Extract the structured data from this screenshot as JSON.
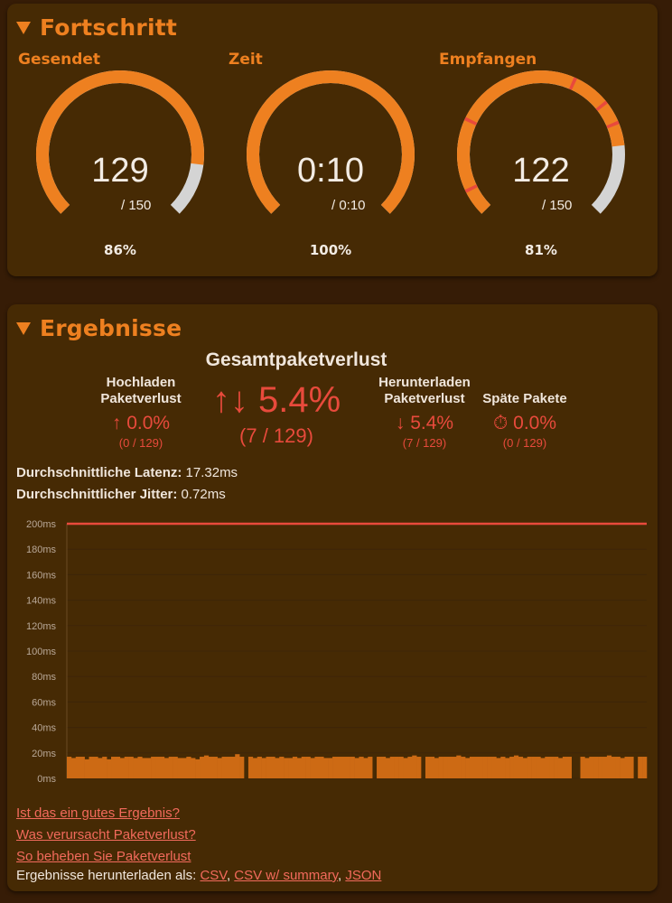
{
  "progress": {
    "title": "Fortschritt",
    "gauges": [
      {
        "label": "Gesendet",
        "value": "129",
        "total": "/ 150",
        "percent": "86%",
        "fraction": 0.86,
        "marks": []
      },
      {
        "label": "Zeit",
        "value": "0:10",
        "total": "/ 0:10",
        "percent": "100%",
        "fraction": 1.0,
        "marks": []
      },
      {
        "label": "Empfangen",
        "value": "122",
        "total": "/ 150",
        "percent": "81%",
        "fraction": 0.81,
        "marks": [
          0.07,
          0.26,
          0.59,
          0.69,
          0.75
        ]
      }
    ]
  },
  "results": {
    "title": "Ergebnisse",
    "total_loss_heading": "Gesamtpaketverlust",
    "total_loss_value": "↑↓ 5.4%",
    "total_loss_count": "(7 / 129)",
    "upload": {
      "title1": "Hochladen",
      "title2": "Paketverlust",
      "value": "↑ 0.0%",
      "count": "(0 / 129)"
    },
    "download": {
      "title1": "Herunterladen",
      "title2": "Paketverlust",
      "value": "↓ 5.4%",
      "count": "(7 / 129)"
    },
    "late": {
      "title": "Späte Pakete",
      "value": "⏱ 0.0%",
      "count": "(0 / 129)"
    },
    "avg_latency_label": "Durchschnittliche Latenz:",
    "avg_latency_value": " 17.32ms",
    "avg_jitter_label": "Durchschnittlicher Jitter:",
    "avg_jitter_value": " 0.72ms",
    "links": [
      "Ist das ein gutes Ergebnis?",
      "Was verursacht Paketverlust?",
      "So beheben Sie Paketverlust"
    ],
    "download_label": "Ergebnisse herunterladen als: ",
    "download_csv": "CSV",
    "download_csv_summary": "CSV w/ summary",
    "download_json": "JSON",
    "sep": ", "
  },
  "colors": {
    "accent": "#ee8020",
    "gauge_track": "#d4d4d4",
    "loss": "#e84a3c",
    "bars": "#cd6a14",
    "panel": "#462a04",
    "background": "#361c06"
  },
  "chart_data": {
    "type": "bar",
    "ylabel": "",
    "ylim": [
      0,
      200
    ],
    "ticks": [
      "0ms",
      "20ms",
      "40ms",
      "60ms",
      "80ms",
      "100ms",
      "120ms",
      "140ms",
      "160ms",
      "180ms",
      "200ms"
    ],
    "threshold": 200,
    "series": [
      {
        "values": [
          17,
          16,
          17,
          17,
          15,
          17,
          17,
          16,
          17,
          15,
          17,
          17,
          16,
          17,
          17,
          16,
          17,
          16,
          16,
          17,
          17,
          17,
          16,
          17,
          17,
          16,
          16,
          17,
          16,
          15,
          17,
          18,
          17,
          17,
          16,
          17,
          17,
          17,
          19,
          17,
          null,
          17,
          16,
          17,
          16,
          17,
          17,
          16,
          17,
          16,
          16,
          17,
          16,
          17,
          17,
          16,
          17,
          17,
          16,
          16,
          17,
          17,
          17,
          17,
          17,
          16,
          17,
          16,
          17,
          null,
          17,
          17,
          16,
          17,
          17,
          17,
          16,
          17,
          18,
          17,
          null,
          17,
          17,
          16,
          17,
          17,
          17,
          17,
          18,
          17,
          16,
          17,
          17,
          17,
          17,
          17,
          17,
          16,
          17,
          16,
          17,
          18,
          17,
          16,
          17,
          17,
          17,
          16,
          17,
          17,
          17,
          16,
          17,
          17,
          null,
          null,
          17,
          16,
          17,
          17,
          17,
          17,
          18,
          17,
          17,
          16,
          17,
          17,
          null,
          17,
          17
        ]
      }
    ]
  }
}
